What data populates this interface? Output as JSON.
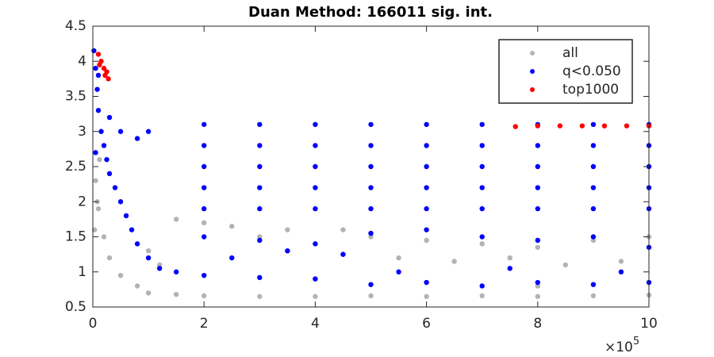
{
  "chart_data": {
    "type": "scatter",
    "title": "Duan Method: 166011 sig. int.",
    "xlim": [
      0,
      1000000
    ],
    "ylim": [
      0.5,
      4.5
    ],
    "xticks": [
      {
        "value": 0,
        "label": "0"
      },
      {
        "value": 200000,
        "label": "2"
      },
      {
        "value": 400000,
        "label": "4"
      },
      {
        "value": 600000,
        "label": "6"
      },
      {
        "value": 800000,
        "label": "8"
      },
      {
        "value": 1000000,
        "label": "10"
      }
    ],
    "yticks": [
      0.5,
      1,
      1.5,
      2,
      2.5,
      3,
      3.5,
      4,
      4.5
    ],
    "x_multiplier": {
      "base": "×10",
      "exponent": "5"
    },
    "grid": false,
    "legend": "northeast",
    "series": [
      {
        "name": "all",
        "color": "#b3b3b3",
        "x": [
          5000,
          10000,
          20000,
          30000,
          50000,
          80000,
          100000,
          150000,
          200000,
          300000,
          400000,
          500000,
          600000,
          700000,
          800000,
          900000,
          1000000,
          450000,
          500000,
          600000,
          700000,
          800000,
          900000,
          1000000,
          300000,
          350000,
          200000,
          150000,
          250000,
          550000,
          650000,
          750000,
          850000,
          950000,
          100000,
          120000,
          400000,
          600000,
          800000,
          3000,
          8000,
          12000,
          15000
        ],
        "y": [
          2.3,
          1.9,
          1.5,
          1.2,
          0.95,
          0.8,
          0.7,
          0.68,
          0.66,
          0.65,
          0.65,
          0.66,
          0.65,
          0.66,
          0.65,
          0.66,
          0.67,
          1.6,
          1.5,
          1.45,
          1.4,
          1.35,
          1.45,
          1.5,
          1.5,
          1.6,
          1.7,
          1.75,
          1.65,
          1.2,
          1.15,
          1.2,
          1.1,
          1.15,
          1.3,
          1.1,
          0.9,
          0.85,
          0.8,
          1.6,
          2.0,
          2.6,
          3.0
        ]
      },
      {
        "name": "q<0.050",
        "color": "#0000ff",
        "x": [
          2000,
          5000,
          8000,
          10000,
          15000,
          20000,
          25000,
          30000,
          40000,
          50000,
          60000,
          70000,
          80000,
          100000,
          120000,
          150000,
          5000,
          10000,
          30000,
          50000,
          80000,
          100000,
          200000,
          200000,
          200000,
          200000,
          200000,
          300000,
          300000,
          300000,
          300000,
          300000,
          400000,
          400000,
          400000,
          400000,
          400000,
          500000,
          500000,
          500000,
          500000,
          500000,
          600000,
          600000,
          600000,
          600000,
          600000,
          700000,
          700000,
          700000,
          700000,
          700000,
          800000,
          800000,
          800000,
          800000,
          800000,
          900000,
          900000,
          900000,
          900000,
          900000,
          1000000,
          1000000,
          1000000,
          1000000,
          1000000,
          200000,
          300000,
          400000,
          500000,
          600000,
          700000,
          800000,
          900000,
          1000000,
          200000,
          300000,
          400000,
          500000,
          600000,
          700000,
          800000,
          900000,
          1000000,
          550000,
          750000,
          950000,
          250000,
          350000,
          450000
        ],
        "y": [
          4.15,
          3.9,
          3.6,
          3.3,
          3.0,
          2.8,
          2.6,
          2.4,
          2.2,
          2.0,
          1.8,
          1.6,
          1.4,
          1.2,
          1.05,
          1.0,
          2.7,
          3.8,
          3.2,
          3.0,
          2.9,
          3.0,
          3.1,
          2.8,
          2.5,
          2.2,
          1.9,
          3.1,
          2.8,
          2.5,
          2.2,
          1.9,
          3.1,
          2.8,
          2.5,
          2.2,
          1.9,
          3.1,
          2.8,
          2.5,
          2.2,
          1.9,
          3.1,
          2.8,
          2.5,
          2.2,
          1.9,
          3.1,
          2.8,
          2.5,
          2.2,
          1.9,
          3.1,
          2.8,
          2.5,
          2.2,
          1.9,
          3.1,
          2.8,
          2.5,
          2.2,
          1.9,
          3.1,
          2.8,
          2.5,
          2.2,
          1.9,
          1.5,
          1.45,
          1.4,
          1.55,
          1.6,
          1.5,
          1.45,
          1.5,
          1.35,
          0.95,
          0.92,
          0.9,
          0.82,
          0.85,
          0.8,
          0.85,
          0.82,
          0.85,
          1.0,
          1.05,
          1.0,
          1.2,
          1.3,
          1.25
        ]
      },
      {
        "name": "top1000",
        "color": "#ff0000",
        "x": [
          10000,
          12000,
          15000,
          20000,
          22000,
          25000,
          28000,
          760000,
          800000,
          840000,
          880000,
          920000,
          960000,
          1000000
        ],
        "y": [
          4.1,
          3.95,
          4.0,
          3.9,
          3.8,
          3.85,
          3.75,
          3.07,
          3.08,
          3.08,
          3.08,
          3.08,
          3.08,
          3.08
        ]
      }
    ]
  }
}
